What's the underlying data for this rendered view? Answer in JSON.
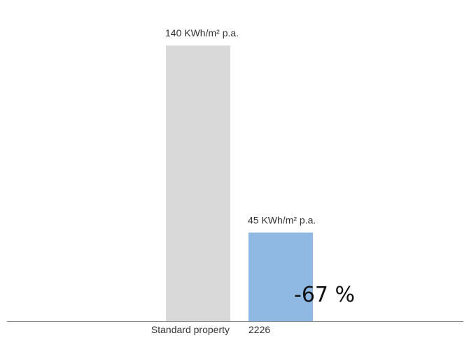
{
  "chart_data": {
    "type": "bar",
    "categories": [
      "Standard property",
      "2226"
    ],
    "values": [
      140,
      45
    ],
    "value_labels": [
      "140 KWh/m² p.a.",
      "45 KWh/m² p.a."
    ],
    "colors": [
      "#d9d9d9",
      "#8fb8e3"
    ],
    "annotation": "-67 %",
    "ylim": [
      0,
      140
    ],
    "grid": false,
    "legend": "none"
  }
}
